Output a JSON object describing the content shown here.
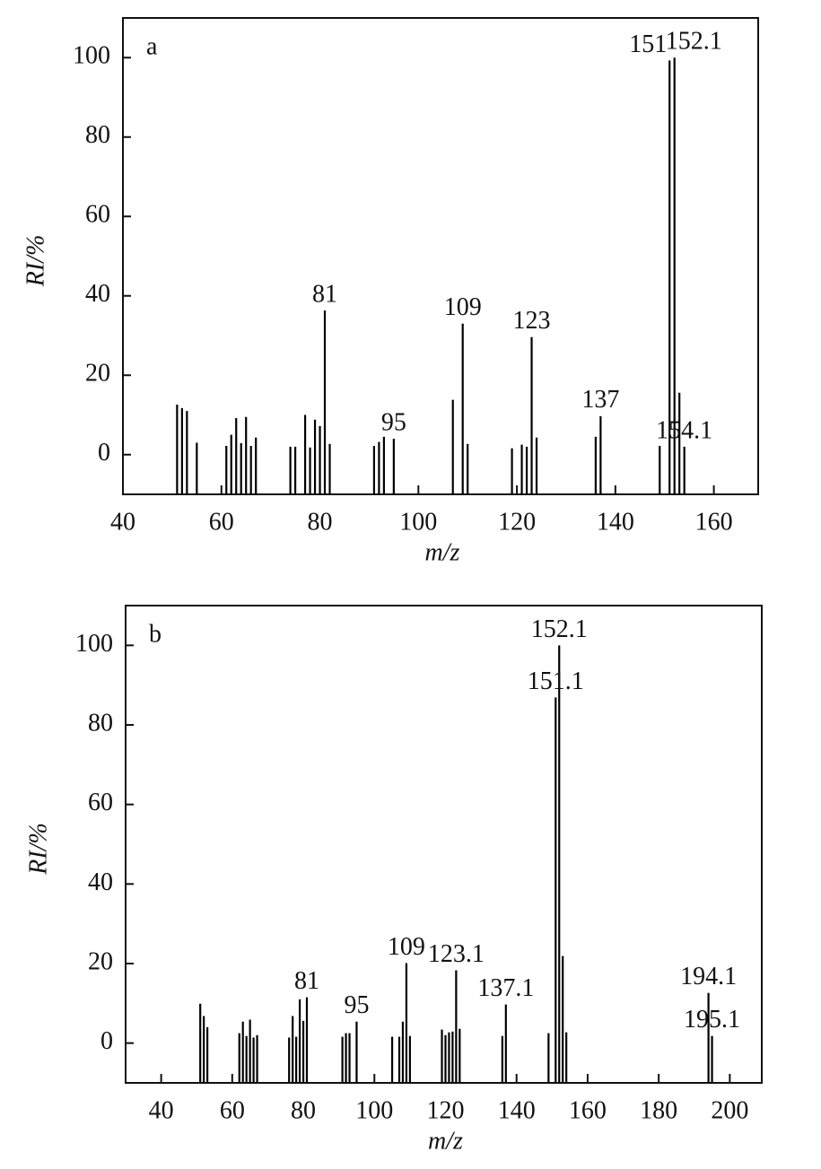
{
  "chart_data": [
    {
      "type": "stem",
      "panel_label": "a",
      "x_label": "m/z",
      "y_label": "RI/%",
      "color": "#000000",
      "x": [
        51,
        52,
        53,
        55,
        61,
        62,
        63,
        64,
        65,
        66,
        67,
        74,
        75,
        77,
        78,
        79,
        80,
        81,
        82,
        91,
        92,
        93,
        95,
        107,
        109,
        110,
        119,
        121,
        122,
        123,
        124,
        136,
        137,
        149,
        151,
        152,
        153,
        154
      ],
      "values": [
        12.6,
        11.7,
        11,
        3,
        2.2,
        5,
        9.2,
        2.9,
        9.5,
        2.2,
        4.3,
        2,
        2,
        10,
        1.8,
        8.8,
        7.2,
        36.3,
        2.7,
        2.2,
        3.2,
        4.5,
        4,
        13.8,
        33,
        2.7,
        1.6,
        2.5,
        2,
        29.6,
        4.3,
        4.5,
        9.7,
        2.2,
        99.3,
        100,
        15.6,
        2
      ],
      "peak_labels": [
        null,
        null,
        null,
        null,
        null,
        null,
        null,
        null,
        null,
        null,
        null,
        null,
        null,
        null,
        null,
        null,
        null,
        "81",
        null,
        null,
        null,
        null,
        "95",
        null,
        "109",
        null,
        null,
        null,
        null,
        "123",
        null,
        null,
        "137",
        null,
        "151",
        "152.1",
        null,
        "154.1"
      ],
      "xlim": [
        40,
        169
      ],
      "ylim": [
        -10,
        110
      ],
      "xticks": [
        40,
        60,
        80,
        100,
        120,
        140,
        160
      ],
      "yticks": [
        0,
        20,
        40,
        60,
        80,
        100
      ]
    },
    {
      "type": "stem",
      "panel_label": "b",
      "x_label": "m/z",
      "y_label": "RI/%",
      "color": "#000000",
      "x": [
        51,
        52,
        53,
        62,
        63,
        64,
        65,
        66,
        67,
        76,
        77,
        78,
        79,
        80,
        81,
        91,
        92,
        93,
        95,
        105,
        107,
        108,
        109,
        110,
        119,
        120,
        121,
        122,
        123,
        124,
        136,
        137,
        149,
        151,
        152,
        153,
        154,
        194,
        195
      ],
      "values": [
        9.9,
        6.8,
        4,
        2.5,
        5.4,
        1.8,
        5.9,
        1.4,
        2,
        1.4,
        6.8,
        1.6,
        11,
        5.6,
        11.5,
        1.6,
        2.5,
        2.5,
        5.4,
        1.6,
        1.6,
        5.4,
        20.1,
        1.8,
        3.4,
        2,
        2.7,
        2.9,
        18.3,
        3.6,
        1.8,
        9.7,
        2.5,
        86.9,
        100,
        21.9,
        2.7,
        12.6,
        1.8
      ],
      "peak_labels": [
        null,
        null,
        null,
        null,
        null,
        null,
        null,
        null,
        null,
        null,
        null,
        null,
        null,
        null,
        "81",
        null,
        null,
        null,
        "95",
        null,
        null,
        null,
        "109",
        null,
        null,
        null,
        null,
        null,
        "123.1",
        null,
        null,
        "137.1",
        null,
        "151.1",
        "152.1",
        null,
        null,
        "194.1",
        "195.1"
      ],
      "xlim": [
        30,
        209
      ],
      "ylim": [
        -10,
        110
      ],
      "xticks": [
        40,
        60,
        80,
        100,
        120,
        140,
        160,
        180,
        200
      ],
      "yticks": [
        0,
        20,
        40,
        60,
        80,
        100
      ]
    }
  ]
}
